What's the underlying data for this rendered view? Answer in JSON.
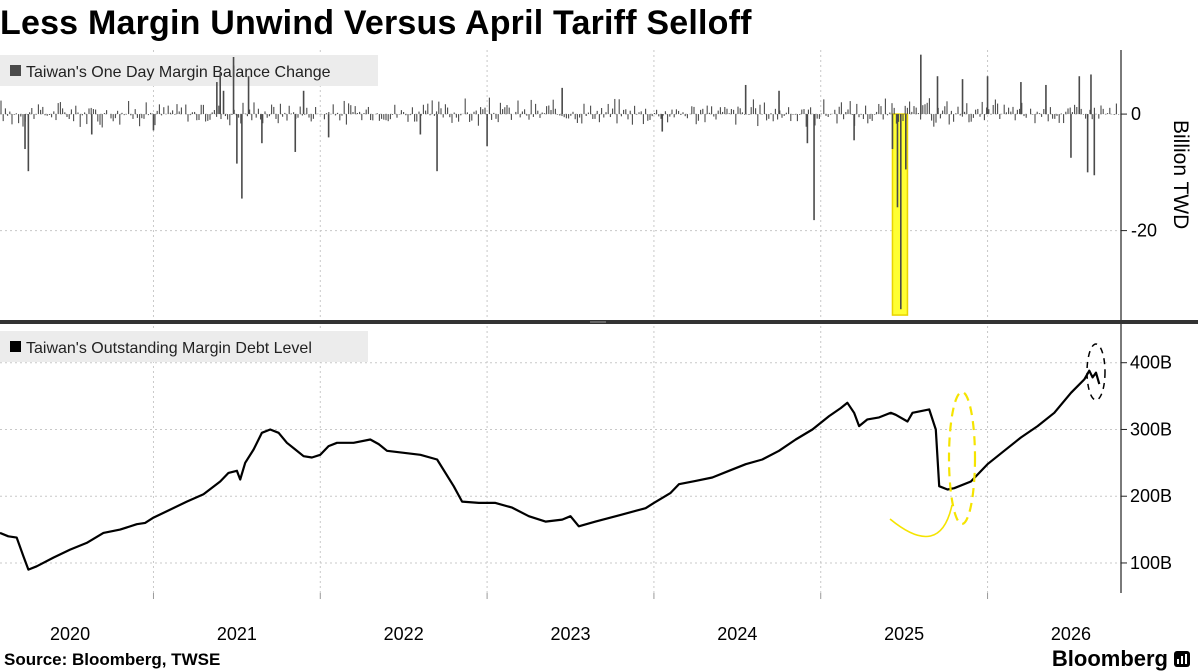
{
  "title": "Less Margin Unwind Versus April Tariff Selloff",
  "source": "Source: Bloomberg, TWSE",
  "brand": "Bloomberg",
  "colors": {
    "bar": "#4a4a4a",
    "line": "#000000",
    "highlight": "#ffff33",
    "highlight_border": "#e8d400",
    "grid": "#c8c8c8",
    "legend_bg": "#ececec"
  },
  "chart_data": [
    {
      "type": "bar",
      "title": "Taiwan's One Day Margin Balance Change",
      "legend": "Taiwan's One Day Margin Balance Change",
      "ylabel": "Billion TWD",
      "yticks": [
        0,
        -20
      ],
      "ylim": [
        -35,
        11
      ],
      "xlim": [
        2019.58,
        2026.3
      ],
      "baseline_noise_amplitude": 2,
      "spikes": [
        {
          "x": 2019.75,
          "y": -9.8
        },
        {
          "x": 2019.73,
          "y": -6.0
        },
        {
          "x": 2020.13,
          "y": -3.5
        },
        {
          "x": 2020.5,
          "y": -2.8
        },
        {
          "x": 2020.88,
          "y": 5.5
        },
        {
          "x": 2020.9,
          "y": 7.0
        },
        {
          "x": 2020.92,
          "y": 4.0
        },
        {
          "x": 2020.98,
          "y": 9.8
        },
        {
          "x": 2021.0,
          "y": -8.5
        },
        {
          "x": 2021.03,
          "y": -14.5
        },
        {
          "x": 2021.07,
          "y": 6.5
        },
        {
          "x": 2021.15,
          "y": -5.0
        },
        {
          "x": 2021.35,
          "y": -6.5
        },
        {
          "x": 2021.4,
          "y": 4.0
        },
        {
          "x": 2021.55,
          "y": -4.0
        },
        {
          "x": 2022.1,
          "y": -3.5
        },
        {
          "x": 2022.2,
          "y": -9.8
        },
        {
          "x": 2022.5,
          "y": -5.5
        },
        {
          "x": 2022.95,
          "y": 4.5
        },
        {
          "x": 2023.55,
          "y": -3.0
        },
        {
          "x": 2024.05,
          "y": 5.0
        },
        {
          "x": 2024.25,
          "y": 4.0
        },
        {
          "x": 2024.42,
          "y": -5.0
        },
        {
          "x": 2024.46,
          "y": -18.2
        },
        {
          "x": 2024.7,
          "y": -4.5
        },
        {
          "x": 2024.93,
          "y": -6.0
        },
        {
          "x": 2024.96,
          "y": -16.0
        },
        {
          "x": 2024.98,
          "y": -33.5
        },
        {
          "x": 2025.01,
          "y": -9.5
        },
        {
          "x": 2025.1,
          "y": 10.2
        },
        {
          "x": 2025.2,
          "y": 6.5
        },
        {
          "x": 2025.35,
          "y": 6.0
        },
        {
          "x": 2025.5,
          "y": 6.5
        },
        {
          "x": 2025.7,
          "y": 5.5
        },
        {
          "x": 2025.85,
          "y": 5.0
        },
        {
          "x": 2026.0,
          "y": -7.5
        },
        {
          "x": 2026.05,
          "y": 6.5
        },
        {
          "x": 2026.1,
          "y": -10.0
        },
        {
          "x": 2026.12,
          "y": 6.8
        },
        {
          "x": 2026.14,
          "y": -10.5
        }
      ],
      "highlight_range": {
        "x": [
          2024.93,
          2025.02
        ],
        "y": [
          -34.5,
          0
        ]
      }
    },
    {
      "type": "line",
      "title": "Taiwan's Outstanding Margin Debt Level",
      "legend": "Taiwan's Outstanding Margin Debt Level",
      "unit": "B TWD",
      "yticks": [
        100,
        200,
        300,
        400
      ],
      "ytick_labels": [
        "100B",
        "200B",
        "300B",
        "400B"
      ],
      "ylim": [
        55,
        455
      ],
      "xlim": [
        2019.58,
        2026.3
      ],
      "x_ticks": [
        2020,
        2021,
        2022,
        2023,
        2024,
        2025,
        2026
      ],
      "x_tick_labels": [
        "2020",
        "2021",
        "2022",
        "2023",
        "2024",
        "2025",
        "2026"
      ],
      "points": [
        [
          2019.58,
          145
        ],
        [
          2019.63,
          140
        ],
        [
          2019.68,
          138
        ],
        [
          2019.72,
          110
        ],
        [
          2019.75,
          90
        ],
        [
          2019.8,
          95
        ],
        [
          2019.9,
          108
        ],
        [
          2020.0,
          120
        ],
        [
          2020.1,
          130
        ],
        [
          2020.2,
          145
        ],
        [
          2020.3,
          150
        ],
        [
          2020.4,
          158
        ],
        [
          2020.45,
          160
        ],
        [
          2020.5,
          168
        ],
        [
          2020.6,
          180
        ],
        [
          2020.7,
          192
        ],
        [
          2020.8,
          203
        ],
        [
          2020.9,
          222
        ],
        [
          2020.95,
          235
        ],
        [
          2021.0,
          238
        ],
        [
          2021.02,
          225
        ],
        [
          2021.05,
          250
        ],
        [
          2021.1,
          270
        ],
        [
          2021.15,
          295
        ],
        [
          2021.2,
          300
        ],
        [
          2021.25,
          295
        ],
        [
          2021.3,
          280
        ],
        [
          2021.35,
          270
        ],
        [
          2021.4,
          260
        ],
        [
          2021.45,
          258
        ],
        [
          2021.5,
          262
        ],
        [
          2021.55,
          275
        ],
        [
          2021.6,
          280
        ],
        [
          2021.7,
          280
        ],
        [
          2021.8,
          285
        ],
        [
          2021.85,
          278
        ],
        [
          2021.9,
          268
        ],
        [
          2022.0,
          265
        ],
        [
          2022.1,
          262
        ],
        [
          2022.2,
          255
        ],
        [
          2022.3,
          215
        ],
        [
          2022.35,
          192
        ],
        [
          2022.45,
          190
        ],
        [
          2022.55,
          190
        ],
        [
          2022.65,
          183
        ],
        [
          2022.75,
          170
        ],
        [
          2022.85,
          162
        ],
        [
          2022.95,
          165
        ],
        [
          2023.0,
          170
        ],
        [
          2023.05,
          155
        ],
        [
          2023.15,
          162
        ],
        [
          2023.3,
          172
        ],
        [
          2023.45,
          182
        ],
        [
          2023.5,
          190
        ],
        [
          2023.6,
          205
        ],
        [
          2023.65,
          218
        ],
        [
          2023.75,
          223
        ],
        [
          2023.85,
          228
        ],
        [
          2023.95,
          238
        ],
        [
          2024.05,
          248
        ],
        [
          2024.15,
          255
        ],
        [
          2024.25,
          268
        ],
        [
          2024.35,
          285
        ],
        [
          2024.45,
          300
        ],
        [
          2024.55,
          320
        ],
        [
          2024.62,
          332
        ],
        [
          2024.66,
          340
        ],
        [
          2024.7,
          325
        ],
        [
          2024.73,
          305
        ],
        [
          2024.78,
          315
        ],
        [
          2024.85,
          318
        ],
        [
          2024.92,
          325
        ],
        [
          2024.95,
          322
        ],
        [
          2025.02,
          312
        ],
        [
          2025.05,
          325
        ],
        [
          2025.15,
          330
        ],
        [
          2025.19,
          300
        ],
        [
          2025.21,
          215
        ],
        [
          2025.26,
          210
        ],
        [
          2025.3,
          212
        ],
        [
          2025.4,
          222
        ],
        [
          2025.5,
          248
        ],
        [
          2025.6,
          268
        ],
        [
          2025.7,
          288
        ],
        [
          2025.8,
          305
        ],
        [
          2025.9,
          325
        ],
        [
          2026.0,
          355
        ],
        [
          2026.08,
          375
        ],
        [
          2026.11,
          388
        ],
        [
          2026.13,
          378
        ],
        [
          2026.15,
          385
        ],
        [
          2026.17,
          368
        ]
      ]
    }
  ]
}
